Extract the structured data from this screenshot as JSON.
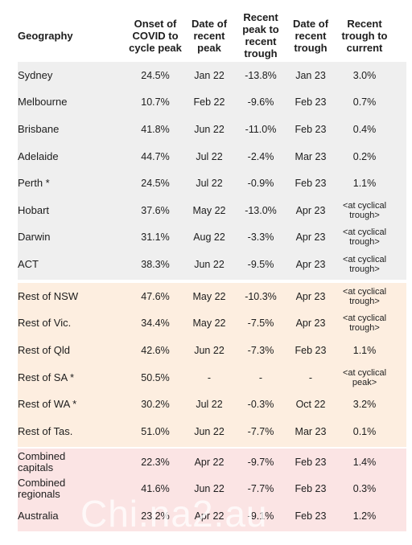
{
  "table": {
    "columns": [
      [
        "Geography"
      ],
      [
        "Onset of",
        "COVID to",
        "cycle peak"
      ],
      [
        "Date of",
        "recent",
        "peak"
      ],
      [
        "Recent",
        "peak to",
        "recent",
        "trough"
      ],
      [
        "Date of",
        "recent",
        "trough"
      ],
      [
        "Recent",
        "trough to",
        "current"
      ]
    ],
    "sections": [
      {
        "rows": [
          [
            "Sydney",
            "24.5%",
            "Jan 22",
            "-13.8%",
            "Jan 23",
            "3.0%"
          ],
          [
            "Melbourne",
            "10.7%",
            "Feb 22",
            "-9.6%",
            "Feb 23",
            "0.7%"
          ],
          [
            "Brisbane",
            "41.8%",
            "Jun 22",
            "-11.0%",
            "Feb 23",
            "0.4%"
          ],
          [
            "Adelaide",
            "44.7%",
            "Jul 22",
            "-2.4%",
            "Mar 23",
            "0.2%"
          ],
          [
            "Perth *",
            "24.5%",
            "Jul 22",
            "-0.9%",
            "Feb 23",
            "1.1%"
          ],
          [
            "Hobart",
            "37.6%",
            "May 22",
            "-13.0%",
            "Apr 23",
            "<at cyclical trough>"
          ],
          [
            "Darwin",
            "31.1%",
            "Aug 22",
            "-3.3%",
            "Apr 23",
            "<at cyclical trough>"
          ],
          [
            "ACT",
            "38.3%",
            "Jun 22",
            "-9.5%",
            "Apr 23",
            "<at cyclical trough>"
          ]
        ]
      },
      {
        "rows": [
          [
            "Rest of NSW",
            "47.6%",
            "May 22",
            "-10.3%",
            "Apr 23",
            "<at cyclical trough>"
          ],
          [
            "Rest of Vic.",
            "34.4%",
            "May 22",
            "-7.5%",
            "Apr 23",
            "<at cyclical trough>"
          ],
          [
            "Rest of Qld",
            "42.6%",
            "Jun 22",
            "-7.3%",
            "Feb 23",
            "1.1%"
          ],
          [
            "Rest of SA *",
            "50.5%",
            "-",
            "-",
            "-",
            "<at cyclical peak>"
          ],
          [
            "Rest of WA *",
            "30.2%",
            "Jul 22",
            "-0.3%",
            "Oct 22",
            "3.2%"
          ],
          [
            "Rest of Tas.",
            "51.0%",
            "Jun 22",
            "-7.7%",
            "Mar 23",
            "0.1%"
          ]
        ]
      },
      {
        "rows": [
          [
            "Combined capitals",
            "22.3%",
            "Apr 22",
            "-9.7%",
            "Feb 23",
            "1.4%"
          ],
          [
            "Combined regionals",
            "41.6%",
            "Jun 22",
            "-7.7%",
            "Feb 23",
            "0.3%"
          ],
          [
            "Australia",
            "23.2%",
            "Apr 22",
            "-9.1%",
            "Feb 23",
            "1.2%"
          ]
        ]
      }
    ]
  },
  "watermark": "Chi.na2.au"
}
